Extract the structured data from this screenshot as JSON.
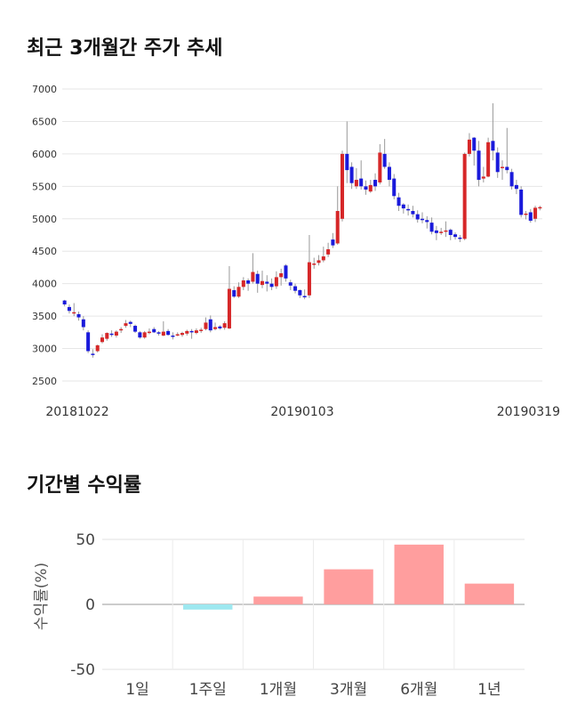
{
  "sections": {
    "price_title": "최근 3개월간 주가 추세",
    "returns_title": "기간별 수익률"
  },
  "chart_data": [
    {
      "type": "candlestick",
      "title": "최근 3개월간 주가 추세",
      "ylim": [
        2500,
        7000
      ],
      "yticks": [
        2500,
        3000,
        3500,
        4000,
        4500,
        5000,
        5500,
        6000,
        6500,
        7000
      ],
      "xticks": [
        "20181022",
        "20190103",
        "20190319"
      ],
      "grid": true,
      "colors": {
        "up": "#d62728",
        "down": "#1a1adb",
        "wick": "#999999"
      },
      "candles": [
        [
          3740,
          3680,
          3750,
          3650
        ],
        [
          3640,
          3580,
          3680,
          3540
        ],
        [
          3560,
          3560,
          3700,
          3500
        ],
        [
          3530,
          3480,
          3570,
          3430
        ],
        [
          3450,
          3330,
          3500,
          3280
        ],
        [
          3250,
          2960,
          3280,
          2930
        ],
        [
          2920,
          2900,
          2990,
          2860
        ],
        [
          2960,
          3050,
          3060,
          2940
        ],
        [
          3100,
          3170,
          3220,
          3080
        ],
        [
          3150,
          3240,
          3250,
          3120
        ],
        [
          3230,
          3210,
          3280,
          3180
        ],
        [
          3200,
          3260,
          3280,
          3170
        ],
        [
          3280,
          3300,
          3330,
          3240
        ],
        [
          3350,
          3390,
          3440,
          3320
        ],
        [
          3410,
          3380,
          3430,
          3330
        ],
        [
          3350,
          3260,
          3370,
          3240
        ],
        [
          3250,
          3170,
          3270,
          3150
        ],
        [
          3170,
          3250,
          3270,
          3150
        ],
        [
          3260,
          3260,
          3310,
          3220
        ],
        [
          3300,
          3250,
          3330,
          3240
        ],
        [
          3250,
          3240,
          3270,
          3200
        ],
        [
          3200,
          3260,
          3420,
          3190
        ],
        [
          3270,
          3210,
          3300,
          3200
        ],
        [
          3200,
          3180,
          3250,
          3140
        ],
        [
          3200,
          3220,
          3250,
          3190
        ],
        [
          3210,
          3240,
          3260,
          3180
        ],
        [
          3230,
          3270,
          3290,
          3200
        ],
        [
          3270,
          3250,
          3300,
          3150
        ],
        [
          3240,
          3280,
          3310,
          3220
        ],
        [
          3270,
          3290,
          3320,
          3240
        ],
        [
          3300,
          3400,
          3480,
          3280
        ],
        [
          3450,
          3280,
          3510,
          3250
        ],
        [
          3300,
          3330,
          3400,
          3280
        ],
        [
          3340,
          3310,
          3360,
          3290
        ],
        [
          3320,
          3390,
          3420,
          3290
        ],
        [
          3310,
          3920,
          4270,
          3300
        ],
        [
          3900,
          3800,
          3960,
          3780
        ],
        [
          3800,
          3950,
          4020,
          3780
        ],
        [
          3950,
          4050,
          4100,
          3900
        ],
        [
          4050,
          4000,
          4080,
          3890
        ],
        [
          4030,
          4180,
          4470,
          4000
        ],
        [
          4150,
          4000,
          4200,
          3860
        ],
        [
          3980,
          4040,
          4200,
          3930
        ],
        [
          4030,
          4000,
          4130,
          3880
        ],
        [
          4000,
          3950,
          4080,
          3900
        ],
        [
          3960,
          4100,
          4190,
          3920
        ],
        [
          4100,
          4160,
          4230,
          3970
        ],
        [
          4280,
          4080,
          4300,
          4030
        ],
        [
          4020,
          3970,
          4060,
          3900
        ],
        [
          3960,
          3890,
          4000,
          3850
        ],
        [
          3900,
          3820,
          3910,
          3780
        ],
        [
          3810,
          3790,
          3910,
          3760
        ],
        [
          3820,
          4330,
          4750,
          3780
        ],
        [
          4300,
          4310,
          4400,
          4230
        ],
        [
          4320,
          4360,
          4440,
          4280
        ],
        [
          4360,
          4420,
          4570,
          4330
        ],
        [
          4450,
          4530,
          4630,
          4410
        ],
        [
          4680,
          4590,
          4780,
          4550
        ],
        [
          4620,
          5120,
          5500,
          4600
        ],
        [
          5000,
          6000,
          6050,
          4960
        ],
        [
          6000,
          5750,
          6500,
          5550
        ],
        [
          5800,
          5550,
          5870,
          5460
        ],
        [
          5500,
          5600,
          5780,
          5460
        ],
        [
          5620,
          5500,
          5900,
          5450
        ],
        [
          5500,
          5450,
          5590,
          5370
        ],
        [
          5420,
          5520,
          5600,
          5400
        ],
        [
          5600,
          5500,
          5700,
          5430
        ],
        [
          5560,
          6020,
          6150,
          5530
        ],
        [
          6000,
          5800,
          6230,
          5770
        ],
        [
          5800,
          5600,
          5870,
          5500
        ],
        [
          5620,
          5350,
          5690,
          5300
        ],
        [
          5330,
          5200,
          5400,
          5120
        ],
        [
          5220,
          5160,
          5240,
          5080
        ],
        [
          5150,
          5130,
          5220,
          5050
        ],
        [
          5120,
          5070,
          5200,
          5020
        ],
        [
          5070,
          4990,
          5130,
          4940
        ],
        [
          5000,
          4990,
          5100,
          4930
        ],
        [
          4980,
          4950,
          5040,
          4850
        ],
        [
          4940,
          4800,
          5020,
          4760
        ],
        [
          4820,
          4780,
          4890,
          4670
        ],
        [
          4790,
          4800,
          4860,
          4750
        ],
        [
          4800,
          4820,
          4960,
          4720
        ],
        [
          4830,
          4750,
          4850,
          4670
        ],
        [
          4760,
          4720,
          4790,
          4680
        ],
        [
          4710,
          4700,
          4750,
          4640
        ],
        [
          4690,
          6000,
          6020,
          4670
        ],
        [
          6000,
          6220,
          6320,
          5960
        ],
        [
          6250,
          6050,
          6260,
          5820
        ],
        [
          6050,
          5600,
          6200,
          5500
        ],
        [
          5620,
          5650,
          5800,
          5560
        ],
        [
          5650,
          6180,
          6250,
          5640
        ],
        [
          6200,
          6050,
          6780,
          5900
        ],
        [
          6020,
          5720,
          6100,
          5630
        ],
        [
          5780,
          5800,
          5900,
          5600
        ],
        [
          5800,
          5750,
          6400,
          5700
        ],
        [
          5720,
          5500,
          5770,
          5450
        ],
        [
          5520,
          5460,
          5600,
          5380
        ],
        [
          5450,
          5060,
          5500,
          5020
        ],
        [
          5060,
          5080,
          5120,
          4990
        ],
        [
          5100,
          4970,
          5150,
          4940
        ],
        [
          5000,
          5170,
          5200,
          4950
        ],
        [
          5160,
          5180,
          5200,
          5130
        ]
      ]
    },
    {
      "type": "bar",
      "ylabel": "수익률(%)",
      "ylim": [
        -50,
        50
      ],
      "yticks": [
        -50,
        0,
        50
      ],
      "categories": [
        "1일",
        "1주일",
        "1개월",
        "3개월",
        "6개월",
        "1년"
      ],
      "values": [
        0,
        -4,
        6,
        27,
        46,
        16
      ],
      "colors": {
        "positive": "#ff9e9e",
        "negative": "#9ee8f0"
      },
      "grid": true
    }
  ]
}
